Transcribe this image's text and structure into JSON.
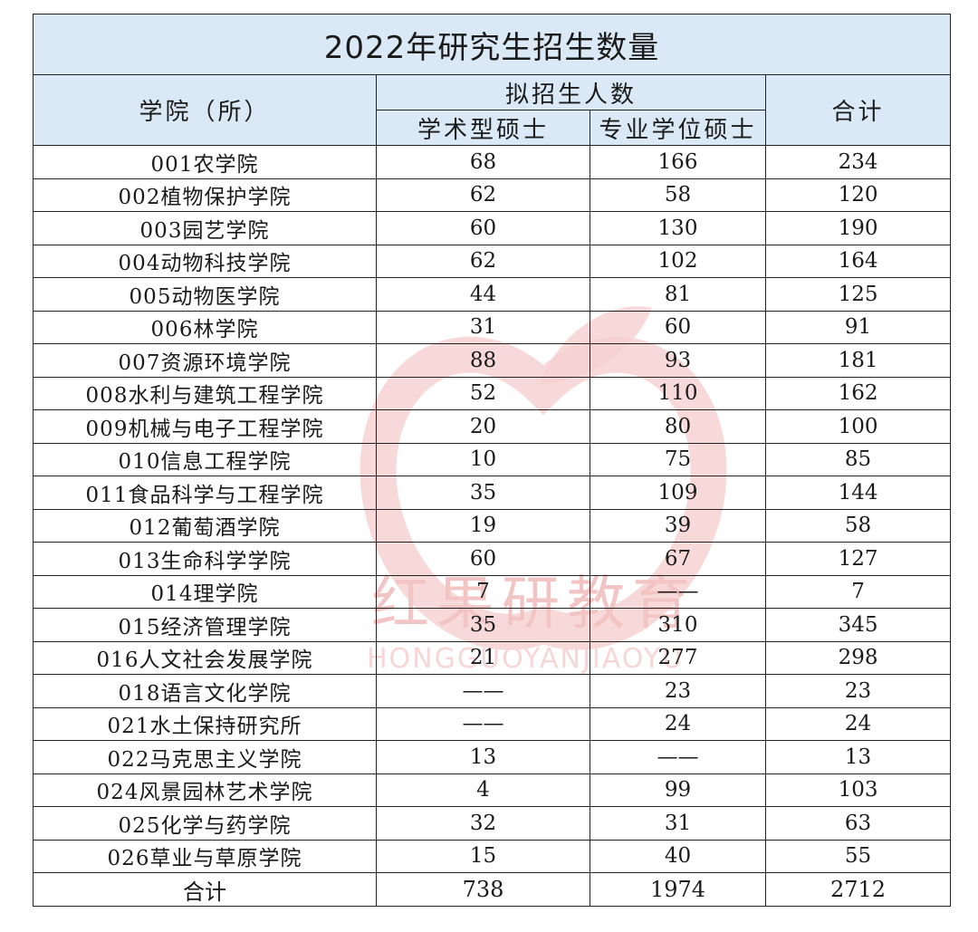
{
  "title": "2022年研究生招生数量",
  "headers": {
    "college": "学院（所）",
    "planned": "拟招生人数",
    "academic": "学术型硕士",
    "professional": "专业学位硕士",
    "total": "合计"
  },
  "rows": [
    {
      "name": "001农学院",
      "academic": "68",
      "professional": "166",
      "total": "234"
    },
    {
      "name": "002植物保护学院",
      "academic": "62",
      "professional": "58",
      "total": "120"
    },
    {
      "name": "003园艺学院",
      "academic": "60",
      "professional": "130",
      "total": "190"
    },
    {
      "name": "004动物科技学院",
      "academic": "62",
      "professional": "102",
      "total": "164"
    },
    {
      "name": "005动物医学院",
      "academic": "44",
      "professional": "81",
      "total": "125"
    },
    {
      "name": "006林学院",
      "academic": "31",
      "professional": "60",
      "total": "91"
    },
    {
      "name": "007资源环境学院",
      "academic": "88",
      "professional": "93",
      "total": "181"
    },
    {
      "name": "008水利与建筑工程学院",
      "academic": "52",
      "professional": "110",
      "total": "162"
    },
    {
      "name": "009机械与电子工程学院",
      "academic": "20",
      "professional": "80",
      "total": "100"
    },
    {
      "name": "010信息工程学院",
      "academic": "10",
      "professional": "75",
      "total": "85"
    },
    {
      "name": "011食品科学与工程学院",
      "academic": "35",
      "professional": "109",
      "total": "144"
    },
    {
      "name": "012葡萄酒学院",
      "academic": "19",
      "professional": "39",
      "total": "58"
    },
    {
      "name": "013生命科学学院",
      "academic": "60",
      "professional": "67",
      "total": "127"
    },
    {
      "name": "014理学院",
      "academic": "7",
      "professional": "——",
      "total": "7"
    },
    {
      "name": "015经济管理学院",
      "academic": "35",
      "professional": "310",
      "total": "345"
    },
    {
      "name": "016人文社会发展学院",
      "academic": "21",
      "professional": "277",
      "total": "298"
    },
    {
      "name": "018语言文化学院",
      "academic": "——",
      "professional": "23",
      "total": "23"
    },
    {
      "name": "021水土保持研究所",
      "academic": "——",
      "professional": "24",
      "total": "24"
    },
    {
      "name": "022马克思主义学院",
      "academic": "13",
      "professional": "——",
      "total": "13"
    },
    {
      "name": "024风景园林艺术学院",
      "academic": "4",
      "professional": "99",
      "total": "103"
    },
    {
      "name": "025化学与药学院",
      "academic": "32",
      "professional": "31",
      "total": "63"
    },
    {
      "name": "026草业与草原学院",
      "academic": "15",
      "professional": "40",
      "total": "55"
    }
  ],
  "footer": {
    "label": "合计",
    "academic": "738",
    "professional": "1974",
    "total": "2712"
  },
  "watermark": {
    "text": "红果研教育",
    "sub": "HONGGUOYANJIAOYU"
  },
  "colors": {
    "header_bg": "#dbe9f6",
    "watermark": "#f3c4c4"
  }
}
